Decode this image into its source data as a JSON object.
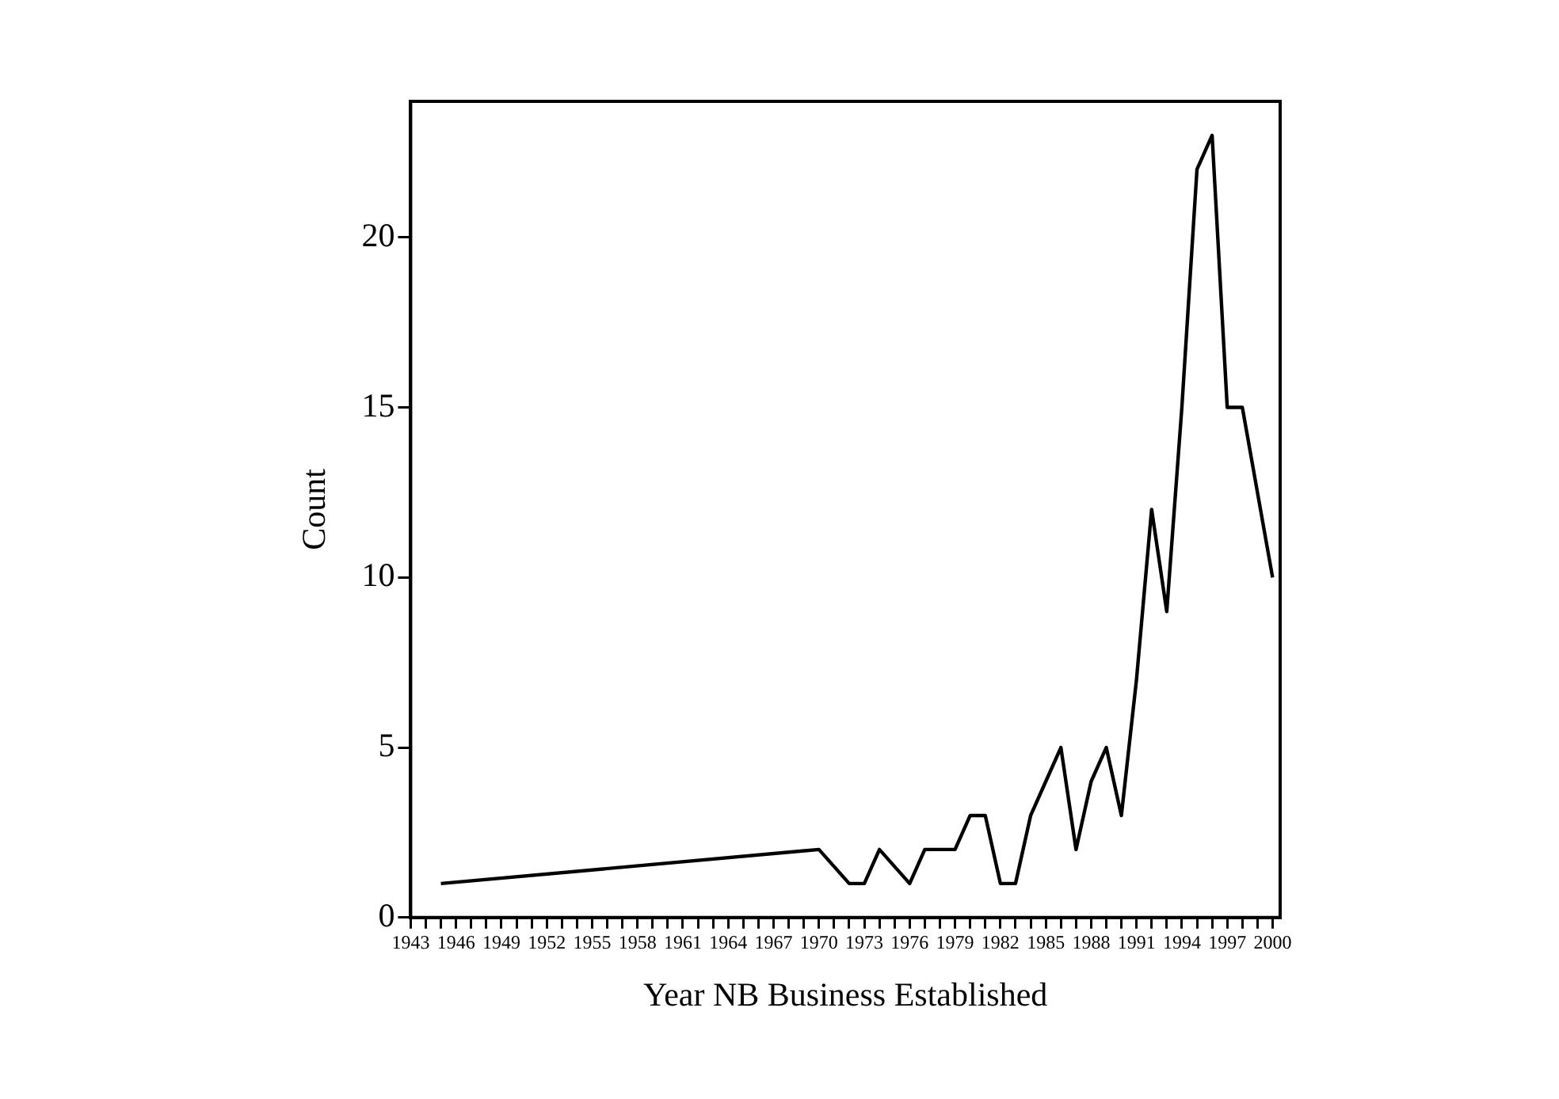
{
  "chart_data": {
    "type": "line",
    "xlabel": "Year NB Business Established",
    "ylabel": "Count",
    "x": [
      1945,
      1970,
      1972,
      1973,
      1974,
      1976,
      1977,
      1979,
      1980,
      1981,
      1982,
      1983,
      1984,
      1985,
      1986,
      1987,
      1988,
      1989,
      1990,
      1991,
      1992,
      1993,
      1994,
      1995,
      1996,
      1997,
      1998,
      2000
    ],
    "series": [
      {
        "color": "#000000",
        "values": [
          1,
          2,
          1,
          1,
          2,
          1,
          2,
          2,
          3,
          3,
          1,
          1,
          3,
          4,
          5,
          2,
          4,
          5,
          3,
          7,
          12,
          9,
          15,
          22,
          23,
          15,
          15,
          10
        ]
      }
    ],
    "xlim": [
      1943,
      2000.5
    ],
    "xticks": [
      1943,
      {
        "value": 1944,
        "label": null
      },
      {
        "value": 1945,
        "label": null
      },
      1946,
      {
        "value": 1947,
        "label": null
      },
      {
        "value": 1948,
        "label": null
      },
      1949,
      {
        "value": 1950,
        "label": null
      },
      {
        "value": 1951,
        "label": null
      },
      1952,
      {
        "value": 1953,
        "label": null
      },
      {
        "value": 1954,
        "label": null
      },
      1955,
      {
        "value": 1956,
        "label": null
      },
      {
        "value": 1957,
        "label": null
      },
      1958,
      {
        "value": 1959,
        "label": null
      },
      {
        "value": 1960,
        "label": null
      },
      1961,
      {
        "value": 1962,
        "label": null
      },
      {
        "value": 1963,
        "label": null
      },
      1964,
      {
        "value": 1965,
        "label": null
      },
      {
        "value": 1966,
        "label": null
      },
      1967,
      {
        "value": 1968,
        "label": null
      },
      {
        "value": 1969,
        "label": null
      },
      1970,
      {
        "value": 1971,
        "label": null
      },
      {
        "value": 1972,
        "label": null
      },
      1973,
      {
        "value": 1974,
        "label": null
      },
      {
        "value": 1975,
        "label": null
      },
      1976,
      {
        "value": 1977,
        "label": null
      },
      {
        "value": 1978,
        "label": null
      },
      1979,
      {
        "value": 1980,
        "label": null
      },
      {
        "value": 1981,
        "label": null
      },
      1982,
      {
        "value": 1983,
        "label": null
      },
      {
        "value": 1984,
        "label": null
      },
      1985,
      {
        "value": 1986,
        "label": null
      },
      {
        "value": 1987,
        "label": null
      },
      1988,
      {
        "value": 1989,
        "label": null
      },
      {
        "value": 1990,
        "label": null
      },
      1991,
      {
        "value": 1992,
        "label": null
      },
      {
        "value": 1993,
        "label": null
      },
      1994,
      {
        "value": 1995,
        "label": null
      },
      {
        "value": 1996,
        "label": null
      },
      1997,
      {
        "value": 1998,
        "label": null
      },
      {
        "value": 1999,
        "label": null
      },
      2000
    ],
    "ylim": [
      0,
      24
    ],
    "yticks": [
      0,
      5,
      10,
      15,
      20
    ],
    "grid": false,
    "legend": false,
    "marker": "none",
    "line_style": "solid"
  }
}
